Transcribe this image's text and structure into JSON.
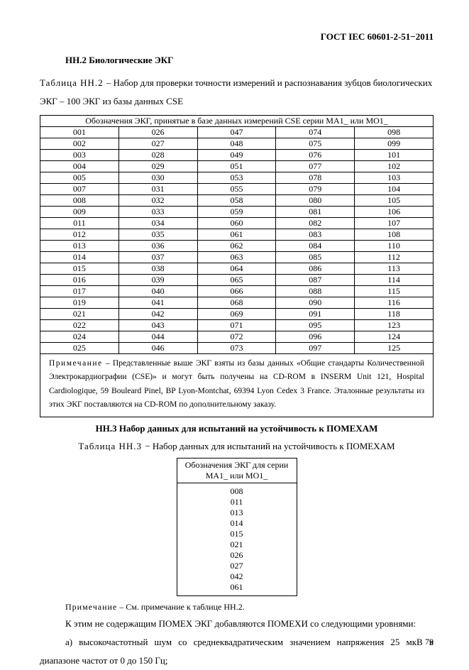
{
  "document_id": "ГОСТ IEC 60601-2-51−2011",
  "sectionA": {
    "title": "НН.2 Биологические ЭКГ",
    "caption_prefix": "Таблица НН.2 ",
    "caption_rest": "– Набор для проверки  точности измерений и распознавания  зубцов биологических ЭКГ  – 100 ЭКГ из базы данных CSE"
  },
  "table1": {
    "header": "Обозначения ЭКГ, принятые в базе данных измерений CSE серии  MA1_  или MO1_",
    "rows": [
      [
        "001",
        "026",
        "047",
        "074",
        "098"
      ],
      [
        "002",
        "027",
        "048",
        "075",
        "099"
      ],
      [
        "003",
        "028",
        "049",
        "076",
        "101"
      ],
      [
        "004",
        "029",
        "051",
        "077",
        "102"
      ],
      [
        "005",
        "030",
        "053",
        "078",
        "103"
      ],
      [
        "007",
        "031",
        "055",
        "079",
        "104"
      ],
      [
        "008",
        "032",
        "058",
        "080",
        "105"
      ],
      [
        "009",
        "033",
        "059",
        "081",
        "106"
      ],
      [
        "011",
        "034",
        "060",
        "082",
        "107"
      ],
      [
        "012",
        "035",
        "061",
        "083",
        "108"
      ],
      [
        "013",
        "036",
        "062",
        "084",
        "110"
      ],
      [
        "014",
        "037",
        "063",
        "085",
        "112"
      ],
      [
        "015",
        "038",
        "064",
        "086",
        "113"
      ],
      [
        "016",
        "039",
        "065",
        "087",
        "114"
      ],
      [
        "017",
        "040",
        "066",
        "088",
        "115"
      ],
      [
        "019",
        "041",
        "068",
        "090",
        "116"
      ],
      [
        "021",
        "042",
        "069",
        "091",
        "118"
      ],
      [
        "022",
        "043",
        "071",
        "095",
        "123"
      ],
      [
        "024",
        "044",
        "072",
        "096",
        "124"
      ],
      [
        "025",
        "046",
        "073",
        "097",
        "125"
      ]
    ],
    "note_label": "Примечание",
    "note_text": " – Представленные выше ЭКГ взяты из базы данных «Общие стандарты Количественной Электрокардиографии (CSE)» и могут быть получены на CD-ROM в INSERM Unit 121, Hospital Cardiologique, 59 Bouleard Pinel, BP Lyon-Montchat, 69394 Lyon Cedex 3 France. Эталонные результаты из этих ЭКГ поставляются на CD-ROM по дополнительному заказу."
  },
  "sectionB": {
    "title": "НН.3 Набор данных для испытаний на устойчивость к ПОМЕХАМ",
    "caption_prefix": "Таблица НН.3 ",
    "caption_rest": "− Набор данных для испытаний на устойчивость к ПОМЕХАМ"
  },
  "table2": {
    "header": "Обозначения ЭКГ для серии MA1_ или MO1_",
    "values": [
      "008",
      "011",
      "013",
      "014",
      "015",
      "021",
      "026",
      "027",
      "042",
      "061"
    ]
  },
  "note2_label": "Примечание",
  "note2_text": " – См. примечание к таблице НН.2.",
  "para1": "К этим не содержащим ПОМЕХ ЭКГ добавляются ПОМЕХИ со следующими уровнями:",
  "para2": "a) высокочастотный шум со среднеквадратическим значением напряжения 25 мкВ в диапазоне частот от 0 до 150 Гц;",
  "page_number": "79"
}
